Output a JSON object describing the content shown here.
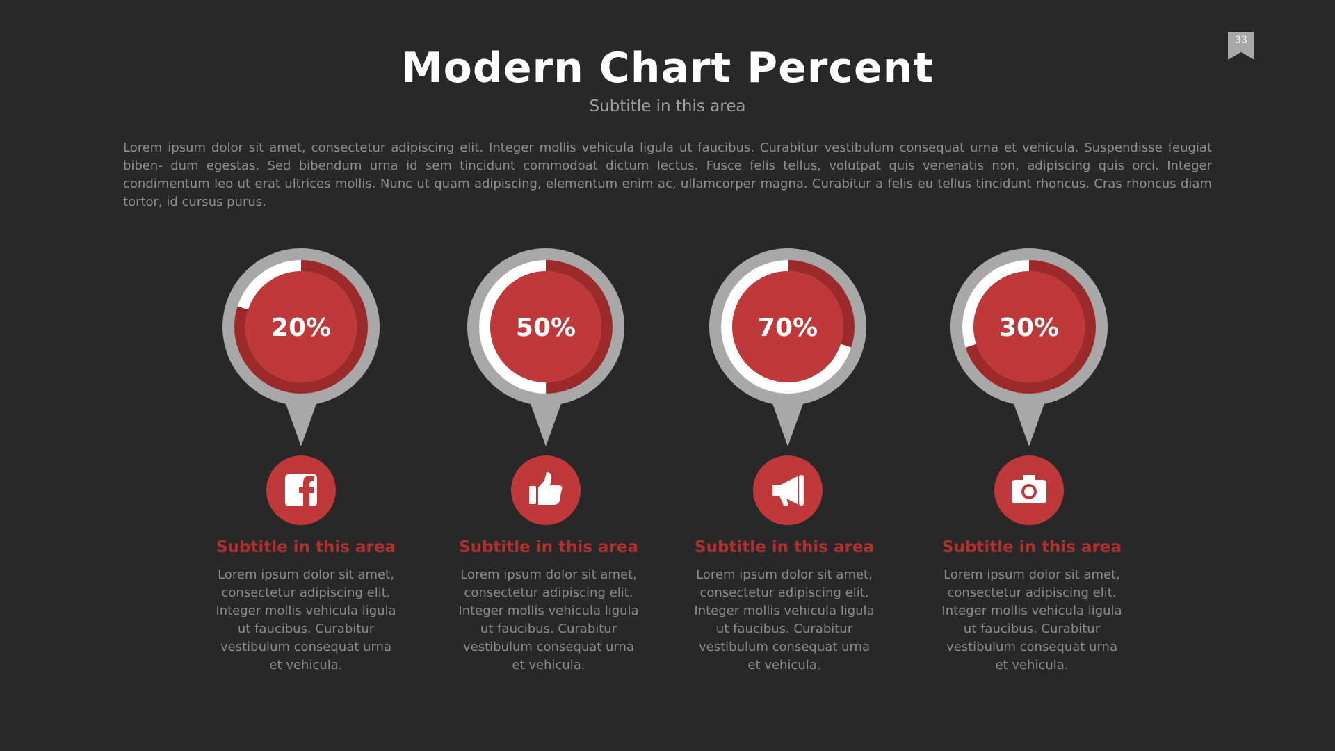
{
  "page": {
    "number": "33"
  },
  "header": {
    "title": "Modern Chart Percent",
    "subtitle": "Subtitle in this area"
  },
  "intro_text": "Lorem ipsum dolor sit amet, consectetur adipiscing elit. Integer mollis vehicula ligula ut faucibus. Curabitur vestibulum consequat urna et vehicula. Suspendisse feugiat biben- dum egestas. Sed bibendum urna id sem tincidunt commodoat dictum lectus. Fusce felis tellus, volutpat quis venenatis non, adipiscing quis orci. Integer condimentum leo ut erat ultrices mollis. Nunc ut quam adipiscing, elementum enim ac, ullamcorper magna. Curabitur a felis eu tellus tincidunt rhoncus. Cras rhoncus diam tortor, id cursus purus.",
  "colors": {
    "background": "#282828",
    "accent_red": "#c0393a",
    "dark_red": "#9c2a2b",
    "pin_gray": "#a8a8a8",
    "progress_white": "#ffffff"
  },
  "chart_data": {
    "type": "pie",
    "categories": [
      "20%",
      "50%",
      "70%",
      "30%"
    ],
    "values": [
      20,
      50,
      70,
      30
    ],
    "max": 100,
    "items": [
      {
        "label": "20%",
        "value": 20,
        "icon": "facebook-icon",
        "subtitle": "Subtitle in this area",
        "text": "Lorem ipsum dolor sit amet, consectetur adipiscing elit. Integer mollis vehicula ligula ut faucibus. Curabitur vestibulum consequat urna et vehicula."
      },
      {
        "label": "50%",
        "value": 50,
        "icon": "thumbs-up-icon",
        "subtitle": "Subtitle in this area",
        "text": "Lorem ipsum dolor sit amet, consectetur adipiscing elit. Integer mollis vehicula ligula ut faucibus. Curabitur vestibulum consequat urna et vehicula."
      },
      {
        "label": "70%",
        "value": 70,
        "icon": "megaphone-icon",
        "subtitle": "Subtitle in this area",
        "text": "Lorem ipsum dolor sit amet, consectetur adipiscing elit. Integer mollis vehicula ligula ut faucibus. Curabitur vestibulum consequat urna et vehicula."
      },
      {
        "label": "30%",
        "value": 30,
        "icon": "camera-icon",
        "subtitle": "Subtitle in this area",
        "text": "Lorem ipsum dolor sit amet, consectetur adipiscing elit. Integer mollis vehicula ligula ut faucibus. Curabitur vestibulum consequat urna et vehicula."
      }
    ]
  }
}
